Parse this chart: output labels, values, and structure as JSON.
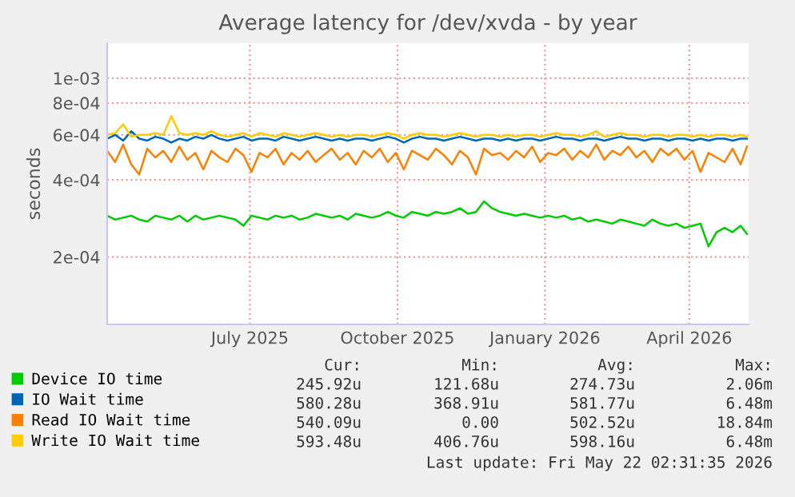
{
  "chart_data": {
    "type": "line",
    "title": "Average latency for /dev/xvda - by year",
    "ylabel": "seconds",
    "log": "y",
    "grid": true,
    "legend": "bottom",
    "x": [
      "2025-04-17",
      "2025-04-22",
      "2025-04-27",
      "2025-05-02",
      "2025-05-07",
      "2025-05-12",
      "2025-05-17",
      "2025-05-22",
      "2025-05-27",
      "2025-06-01",
      "2025-06-06",
      "2025-06-11",
      "2025-06-16",
      "2025-06-21",
      "2025-06-26",
      "2025-07-01",
      "2025-07-06",
      "2025-07-11",
      "2025-07-16",
      "2025-07-21",
      "2025-07-26",
      "2025-07-31",
      "2025-08-05",
      "2025-08-10",
      "2025-08-15",
      "2025-08-20",
      "2025-08-25",
      "2025-08-30",
      "2025-09-04",
      "2025-09-09",
      "2025-09-14",
      "2025-09-19",
      "2025-09-24",
      "2025-09-29",
      "2025-10-04",
      "2025-10-09",
      "2025-10-14",
      "2025-10-19",
      "2025-10-24",
      "2025-10-29",
      "2025-11-03",
      "2025-11-08",
      "2025-11-13",
      "2025-11-18",
      "2025-11-23",
      "2025-11-28",
      "2025-12-03",
      "2025-12-08",
      "2025-12-13",
      "2025-12-18",
      "2025-12-23",
      "2025-12-28",
      "2026-01-02",
      "2026-01-07",
      "2026-01-12",
      "2026-01-17",
      "2026-01-22",
      "2026-01-27",
      "2026-02-01",
      "2026-02-06",
      "2026-02-11",
      "2026-02-16",
      "2026-02-21",
      "2026-02-26",
      "2026-03-03",
      "2026-03-08",
      "2026-03-13",
      "2026-03-18",
      "2026-03-23",
      "2026-03-28",
      "2026-04-02",
      "2026-04-07",
      "2026-04-12",
      "2026-04-17",
      "2026-04-22",
      "2026-04-27",
      "2026-05-02",
      "2026-05-07",
      "2026-05-12",
      "2026-05-17",
      "2026-05-21"
    ],
    "xlim": [
      "2025-04-17",
      "2026-05-22"
    ],
    "xticks": [
      {
        "value": "2025-07-15",
        "label": "July 2025"
      },
      {
        "value": "2025-10-15",
        "label": "October 2025"
      },
      {
        "value": "2026-01-15",
        "label": "January 2026"
      },
      {
        "value": "2026-04-15",
        "label": "April 2026"
      }
    ],
    "ylim": [
      0.000109,
      0.00137
    ],
    "yticks": [
      {
        "value": 0.0002,
        "label": "2e-04"
      },
      {
        "value": 0.0004,
        "label": "4e-04"
      },
      {
        "value": 0.0006,
        "label": "6e-04"
      },
      {
        "value": 0.0008,
        "label": "8e-04"
      },
      {
        "value": 0.001,
        "label": "1e-03"
      }
    ],
    "series": [
      {
        "name": "Device IO time",
        "color": "#00cc00",
        "values": [
          0.00029,
          0.00028,
          0.000285,
          0.00029,
          0.00028,
          0.000275,
          0.00029,
          0.000285,
          0.00028,
          0.00029,
          0.000275,
          0.00029,
          0.00028,
          0.000285,
          0.00029,
          0.000285,
          0.00028,
          0.000265,
          0.00029,
          0.000285,
          0.00028,
          0.00029,
          0.000285,
          0.00029,
          0.00028,
          0.000285,
          0.000295,
          0.00029,
          0.000285,
          0.00029,
          0.00028,
          0.000295,
          0.00029,
          0.000285,
          0.00029,
          0.0003,
          0.00029,
          0.000285,
          0.0003,
          0.000295,
          0.00029,
          0.0003,
          0.000295,
          0.0003,
          0.00031,
          0.000295,
          0.0003,
          0.00033,
          0.00031,
          0.0003,
          0.000295,
          0.00029,
          0.000295,
          0.00029,
          0.000285,
          0.00029,
          0.000285,
          0.00029,
          0.00028,
          0.000285,
          0.000275,
          0.00028,
          0.000275,
          0.00027,
          0.00028,
          0.000275,
          0.00027,
          0.000265,
          0.00028,
          0.00027,
          0.000265,
          0.00027,
          0.00026,
          0.000265,
          0.00027,
          0.00022,
          0.00025,
          0.00026,
          0.00025,
          0.000265,
          0.000246
        ]
      },
      {
        "name": "IO Wait time",
        "color": "#0066b3",
        "values": [
          0.00058,
          0.0006,
          0.00057,
          0.00062,
          0.00058,
          0.00057,
          0.00059,
          0.00058,
          0.00056,
          0.00058,
          0.00057,
          0.00059,
          0.00058,
          0.0006,
          0.00058,
          0.00057,
          0.00058,
          0.00059,
          0.00057,
          0.00058,
          0.00058,
          0.00057,
          0.00059,
          0.00058,
          0.00057,
          0.00058,
          0.00059,
          0.00058,
          0.00057,
          0.00058,
          0.00057,
          0.00058,
          0.00058,
          0.00057,
          0.00058,
          0.00059,
          0.00058,
          0.00056,
          0.00058,
          0.00059,
          0.00058,
          0.00058,
          0.00057,
          0.00058,
          0.00059,
          0.00058,
          0.00057,
          0.00058,
          0.00058,
          0.00057,
          0.00058,
          0.00057,
          0.00058,
          0.00058,
          0.00057,
          0.00058,
          0.00059,
          0.00058,
          0.00058,
          0.00057,
          0.00058,
          0.00058,
          0.00057,
          0.00058,
          0.00059,
          0.00058,
          0.00058,
          0.00057,
          0.00058,
          0.00058,
          0.00057,
          0.00058,
          0.00058,
          0.00057,
          0.00058,
          0.00057,
          0.00058,
          0.00058,
          0.00057,
          0.00058,
          0.00058
        ]
      },
      {
        "name": "Read IO Wait time",
        "color": "#ff8000",
        "values": [
          0.00052,
          0.00047,
          0.00055,
          0.00046,
          0.00042,
          0.00053,
          0.00049,
          0.00052,
          0.00047,
          0.00054,
          0.00048,
          0.00051,
          0.00044,
          0.00052,
          0.00049,
          0.00047,
          0.00053,
          0.0005,
          0.00043,
          0.00051,
          0.00049,
          0.00053,
          0.00046,
          0.00051,
          0.00048,
          0.00052,
          0.00047,
          0.0005,
          0.00053,
          0.00048,
          0.00051,
          0.00046,
          0.00052,
          0.00049,
          0.00053,
          0.00047,
          0.00051,
          0.00044,
          0.00052,
          0.0005,
          0.00048,
          0.00053,
          0.0005,
          0.00046,
          0.00052,
          0.00049,
          0.00042,
          0.00053,
          0.0005,
          0.00051,
          0.00048,
          0.00052,
          0.00049,
          0.00054,
          0.00047,
          0.00051,
          0.0005,
          0.00053,
          0.00048,
          0.00052,
          0.00049,
          0.00055,
          0.00048,
          0.00052,
          0.0005,
          0.00054,
          0.00049,
          0.00052,
          0.00047,
          0.00053,
          0.0005,
          0.00053,
          0.00048,
          0.00052,
          0.00043,
          0.00051,
          0.00049,
          0.00047,
          0.00053,
          0.00046,
          0.00054
        ]
      },
      {
        "name": "Write IO Wait time",
        "color": "#ffcc00",
        "values": [
          0.0006,
          0.00061,
          0.00066,
          0.00059,
          0.0006,
          0.0006,
          0.00061,
          0.0006,
          0.00071,
          0.00061,
          0.0006,
          0.00061,
          0.0006,
          0.00062,
          0.0006,
          0.00059,
          0.0006,
          0.00061,
          0.00059,
          0.00061,
          0.0006,
          0.00059,
          0.00061,
          0.0006,
          0.00059,
          0.0006,
          0.00061,
          0.0006,
          0.00059,
          0.0006,
          0.00059,
          0.0006,
          0.0006,
          0.00059,
          0.0006,
          0.00061,
          0.0006,
          0.00058,
          0.0006,
          0.00061,
          0.0006,
          0.0006,
          0.00059,
          0.0006,
          0.00061,
          0.0006,
          0.00059,
          0.0006,
          0.0006,
          0.00059,
          0.0006,
          0.00059,
          0.0006,
          0.0006,
          0.00059,
          0.0006,
          0.00061,
          0.0006,
          0.0006,
          0.00059,
          0.0006,
          0.00062,
          0.00059,
          0.0006,
          0.00061,
          0.0006,
          0.0006,
          0.00059,
          0.0006,
          0.0006,
          0.00059,
          0.0006,
          0.0006,
          0.00059,
          0.0006,
          0.00059,
          0.0006,
          0.0006,
          0.00059,
          0.0006,
          0.00059
        ]
      }
    ],
    "annotations": [
      "Cur:",
      "Min:",
      "Avg:",
      "Max:",
      "245.92u",
      "121.68u",
      "274.73u",
      "2.06m",
      "580.28u",
      "368.91u",
      "581.77u",
      "6.48m",
      "540.09u",
      "0.00",
      "502.52u",
      "18.84m",
      "593.48u",
      "406.76u",
      "598.16u",
      "6.48m",
      "Last update: Fri May 22 02:31:35 2026"
    ]
  }
}
